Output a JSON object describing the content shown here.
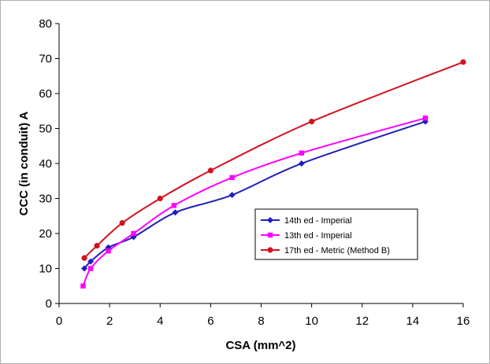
{
  "chart_data": {
    "type": "line",
    "title": "",
    "xlabel": "CSA (mm^2)",
    "ylabel": "CCC (in conduit) A",
    "xlim": [
      0,
      16
    ],
    "ylim": [
      0,
      80
    ],
    "x_ticks": [
      "0",
      "2",
      "4",
      "6",
      "8",
      "10",
      "12",
      "14",
      "16"
    ],
    "y_ticks": [
      "0",
      "10",
      "20",
      "30",
      "40",
      "50",
      "60",
      "70",
      "80"
    ],
    "grid": false,
    "legend_position": "center-right",
    "series": [
      {
        "name": "14th ed - Imperial",
        "color": "#1f1fb8",
        "marker": "diamond",
        "x": [
          1.0,
          1.25,
          1.95,
          2.95,
          4.6,
          6.85,
          9.6,
          14.5
        ],
        "y": [
          10,
          12,
          16,
          19,
          26,
          31,
          40,
          52
        ]
      },
      {
        "name": "13th ed - Imperial",
        "color": "#ff00ff",
        "marker": "square",
        "x": [
          0.95,
          1.25,
          1.95,
          2.95,
          4.55,
          6.85,
          9.6,
          14.5
        ],
        "y": [
          5,
          10,
          15,
          20,
          28,
          36,
          43,
          53
        ]
      },
      {
        "name": "17th ed - Metric (Method B)",
        "color": "#d0141e",
        "marker": "circle",
        "x": [
          1.0,
          1.5,
          2.5,
          4.0,
          6.0,
          10.0,
          16.0
        ],
        "y": [
          13,
          16.5,
          23,
          30,
          38,
          52,
          69
        ]
      }
    ]
  }
}
